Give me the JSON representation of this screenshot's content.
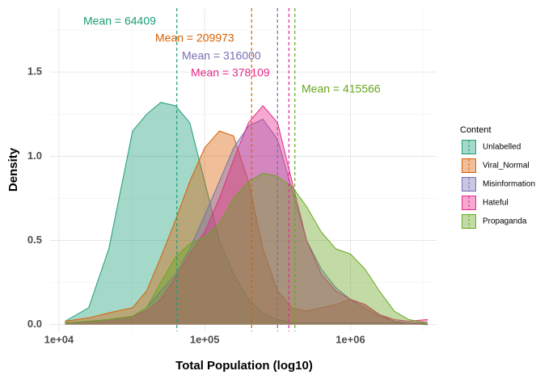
{
  "chart_data": {
    "type": "density",
    "x_label": "Total Population (log10)",
    "y_label": "Density",
    "log_x": true,
    "grid": true,
    "legend_title": "Content",
    "legend_position": "right",
    "xlim": [
      8700,
      3900000
    ],
    "ylim": [
      -0.04,
      1.88
    ],
    "xticks": [
      {
        "value": 10000,
        "label": "1e+04"
      },
      {
        "value": 100000,
        "label": "1e+05"
      },
      {
        "value": 1000000,
        "label": "1e+06"
      }
    ],
    "yticks": [
      {
        "value": 0,
        "label": "0.0"
      },
      {
        "value": 0.5,
        "label": "0.5"
      },
      {
        "value": 1,
        "label": "1.0"
      },
      {
        "value": 1.5,
        "label": "1.5"
      }
    ],
    "x": [
      11000,
      16000,
      22000,
      32000,
      40000,
      50000,
      63000,
      79000,
      100000,
      126000,
      158000,
      200000,
      251000,
      316000,
      398000,
      501000,
      631000,
      794000,
      1000000,
      1260000,
      1580000,
      2000000,
      2510000,
      3390000
    ],
    "series": [
      {
        "name": "Unlabelled",
        "color": "#1b9e77",
        "mean": 64409,
        "mean_label": "Mean = 64409",
        "values": [
          0.02,
          0.1,
          0.45,
          1.15,
          1.25,
          1.32,
          1.3,
          1.2,
          0.85,
          0.5,
          0.3,
          0.15,
          0.07,
          0.03,
          0.01,
          0.01,
          0.01,
          0.01,
          0.01,
          0.01,
          0.01,
          0.01,
          0.01,
          0.0
        ]
      },
      {
        "name": "Viral_Normal",
        "color": "#d95f02",
        "mean": 209973,
        "mean_label": "Mean = 209973",
        "values": [
          0.02,
          0.04,
          0.07,
          0.1,
          0.2,
          0.4,
          0.62,
          0.85,
          1.05,
          1.15,
          1.12,
          0.85,
          0.45,
          0.2,
          0.1,
          0.08,
          0.1,
          0.12,
          0.15,
          0.12,
          0.06,
          0.02,
          0.01,
          0.01
        ]
      },
      {
        "name": "Misinformation",
        "color": "#7570b3",
        "mean": 316000,
        "mean_label": "Mean = 316000",
        "values": [
          0.01,
          0.02,
          0.03,
          0.05,
          0.1,
          0.2,
          0.3,
          0.45,
          0.65,
          0.85,
          1.05,
          1.18,
          1.22,
          1.1,
          0.8,
          0.5,
          0.33,
          0.22,
          0.15,
          0.1,
          0.05,
          0.02,
          0.01,
          0.01
        ]
      },
      {
        "name": "Hateful",
        "color": "#e7298a",
        "mean": 378109,
        "mean_label": "Mean = 378109",
        "values": [
          0.01,
          0.02,
          0.03,
          0.05,
          0.08,
          0.15,
          0.28,
          0.42,
          0.55,
          0.75,
          0.98,
          1.2,
          1.3,
          1.2,
          0.85,
          0.5,
          0.3,
          0.2,
          0.15,
          0.12,
          0.06,
          0.03,
          0.02,
          0.03
        ]
      },
      {
        "name": "Propaganda",
        "color": "#66a61e",
        "mean": 415566,
        "mean_label": "Mean = 415566",
        "values": [
          0.01,
          0.02,
          0.03,
          0.05,
          0.1,
          0.25,
          0.4,
          0.48,
          0.52,
          0.6,
          0.75,
          0.85,
          0.9,
          0.88,
          0.82,
          0.7,
          0.55,
          0.45,
          0.42,
          0.33,
          0.2,
          0.08,
          0.03,
          0.01
        ]
      }
    ]
  }
}
